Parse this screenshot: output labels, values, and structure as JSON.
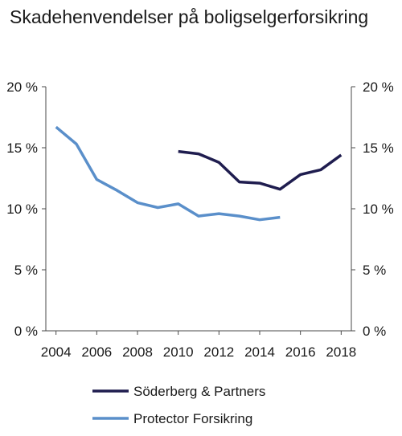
{
  "chart_data": {
    "type": "line",
    "title": "Skadehenvendelser på boligselgerforsikring",
    "xlabel": "",
    "ylabel": "",
    "xlim": [
      2003.5,
      2018.5
    ],
    "ylim": [
      0,
      20
    ],
    "x_ticks": [
      "2004",
      "2006",
      "2008",
      "2010",
      "2012",
      "2014",
      "2016",
      "2018"
    ],
    "y_ticks_left": [
      "0 %",
      "5 %",
      "10 %",
      "15 %",
      "20 %"
    ],
    "y_ticks_right": [
      "0 %",
      "5 %",
      "10 %",
      "15 %",
      "20 %"
    ],
    "grid": false,
    "legend_position": "bottom",
    "series": [
      {
        "name": "Söderberg & Partners",
        "color": "#1f1d4f",
        "x": [
          2010,
          2011,
          2012,
          2013,
          2014,
          2015,
          2016,
          2017,
          2018
        ],
        "y": [
          14.7,
          14.5,
          13.8,
          12.2,
          12.1,
          11.6,
          12.8,
          13.2,
          14.4
        ]
      },
      {
        "name": "Protector Forsikring",
        "color": "#5a8fca",
        "x": [
          2004,
          2005,
          2006,
          2007,
          2008,
          2009,
          2010,
          2011,
          2012,
          2013,
          2014,
          2015
        ],
        "y": [
          16.7,
          15.3,
          12.4,
          11.5,
          10.5,
          10.1,
          10.4,
          9.4,
          9.6,
          9.4,
          9.1,
          9.3
        ]
      }
    ]
  }
}
